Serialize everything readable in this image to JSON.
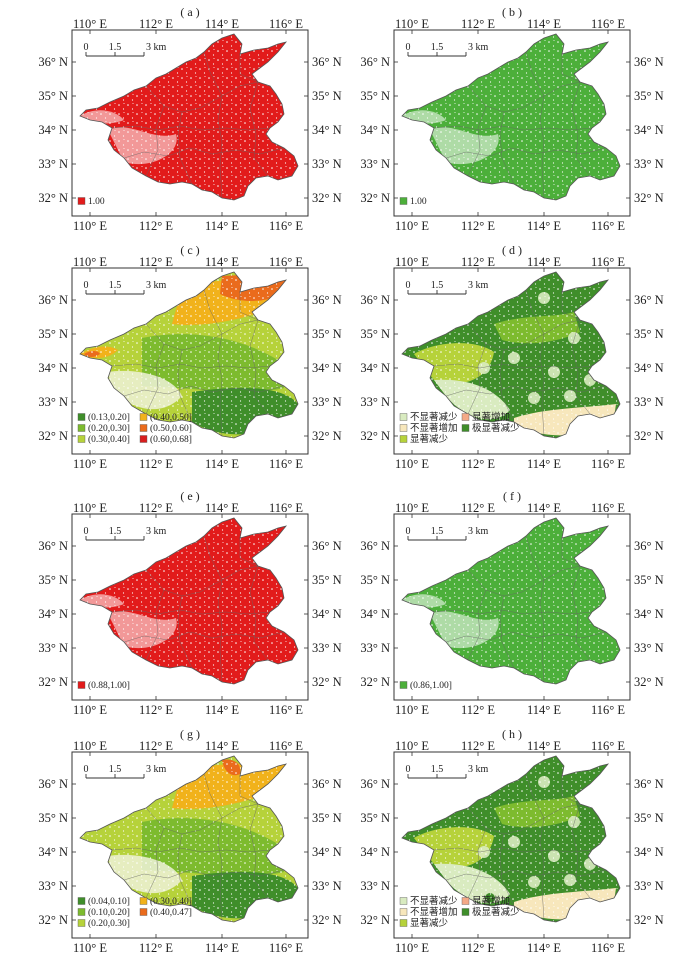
{
  "colors": {
    "red": "#e21b1b",
    "green": "#4caf3a",
    "dark_green": "#3f8e2a",
    "mid_green": "#7dbb2e",
    "yellow_green": "#b6d23a",
    "amber": "#f1b21b",
    "orange": "#ea6b1c",
    "deep_red": "#d81e1e",
    "pale_green": "#d9ebc0",
    "pale_yellow": "#f7e7bc",
    "salmon": "#f4a987"
  },
  "axes": {
    "lon_ticks": [
      "110° E",
      "112° E",
      "114° E",
      "116° E"
    ],
    "lat_ticks": [
      "36° N",
      "35° N",
      "34° N",
      "33° N",
      "32° N"
    ]
  },
  "scale_bar": {
    "labels": [
      "0",
      "1.5",
      "3 km"
    ]
  },
  "panels": [
    {
      "id": "a",
      "title": "( a )",
      "fill": "red",
      "legend": [
        {
          "color": "red",
          "label": "1.00"
        }
      ]
    },
    {
      "id": "b",
      "title": "( b )",
      "fill": "green",
      "legend": [
        {
          "color": "green",
          "label": "1.00"
        }
      ]
    },
    {
      "id": "c",
      "title": "( c )",
      "fill": "gradient_c",
      "legend": [
        {
          "color": "dark_green",
          "label": "(0.13,0.20]"
        },
        {
          "color": "amber",
          "label": "(0.40,0.50]"
        },
        {
          "color": "mid_green",
          "label": "(0.20,0.30]"
        },
        {
          "color": "orange",
          "label": "(0.50,0.60]"
        },
        {
          "color": "yellow_green",
          "label": "(0.30,0.40]"
        },
        {
          "color": "deep_red",
          "label": "(0.60,0.68]"
        }
      ]
    },
    {
      "id": "d",
      "title": "( d )",
      "fill": "trend",
      "legend": [
        {
          "color": "pale_green",
          "label": "不显著减少"
        },
        {
          "color": "salmon",
          "label": "显著增加"
        },
        {
          "color": "pale_yellow",
          "label": "不显著增加"
        },
        {
          "color": "dark_green",
          "label": "极显著减少"
        },
        {
          "color": "yellow_green",
          "label": "显著减少"
        }
      ]
    },
    {
      "id": "e",
      "title": "( e )",
      "fill": "red",
      "legend": [
        {
          "color": "red",
          "label": "(0.88,1.00]"
        }
      ]
    },
    {
      "id": "f",
      "title": "( f )",
      "fill": "green",
      "legend": [
        {
          "color": "green",
          "label": "(0.86,1.00]"
        }
      ]
    },
    {
      "id": "g",
      "title": "( g )",
      "fill": "gradient_g",
      "legend": [
        {
          "color": "dark_green",
          "label": "(0.04,0.10]"
        },
        {
          "color": "amber",
          "label": "(0.30,0.40]"
        },
        {
          "color": "mid_green",
          "label": "(0.10,0.20]"
        },
        {
          "color": "orange",
          "label": "(0.40,0.47]"
        },
        {
          "color": "yellow_green",
          "label": "(0.20,0.30]"
        }
      ]
    },
    {
      "id": "h",
      "title": "( h )",
      "fill": "trend",
      "legend": [
        {
          "color": "pale_green",
          "label": "不显著减少"
        },
        {
          "color": "salmon",
          "label": "显著增加"
        },
        {
          "color": "pale_yellow",
          "label": "不显著增加"
        },
        {
          "color": "dark_green",
          "label": "极显著减少"
        },
        {
          "color": "yellow_green",
          "label": "显著减少"
        }
      ]
    }
  ]
}
